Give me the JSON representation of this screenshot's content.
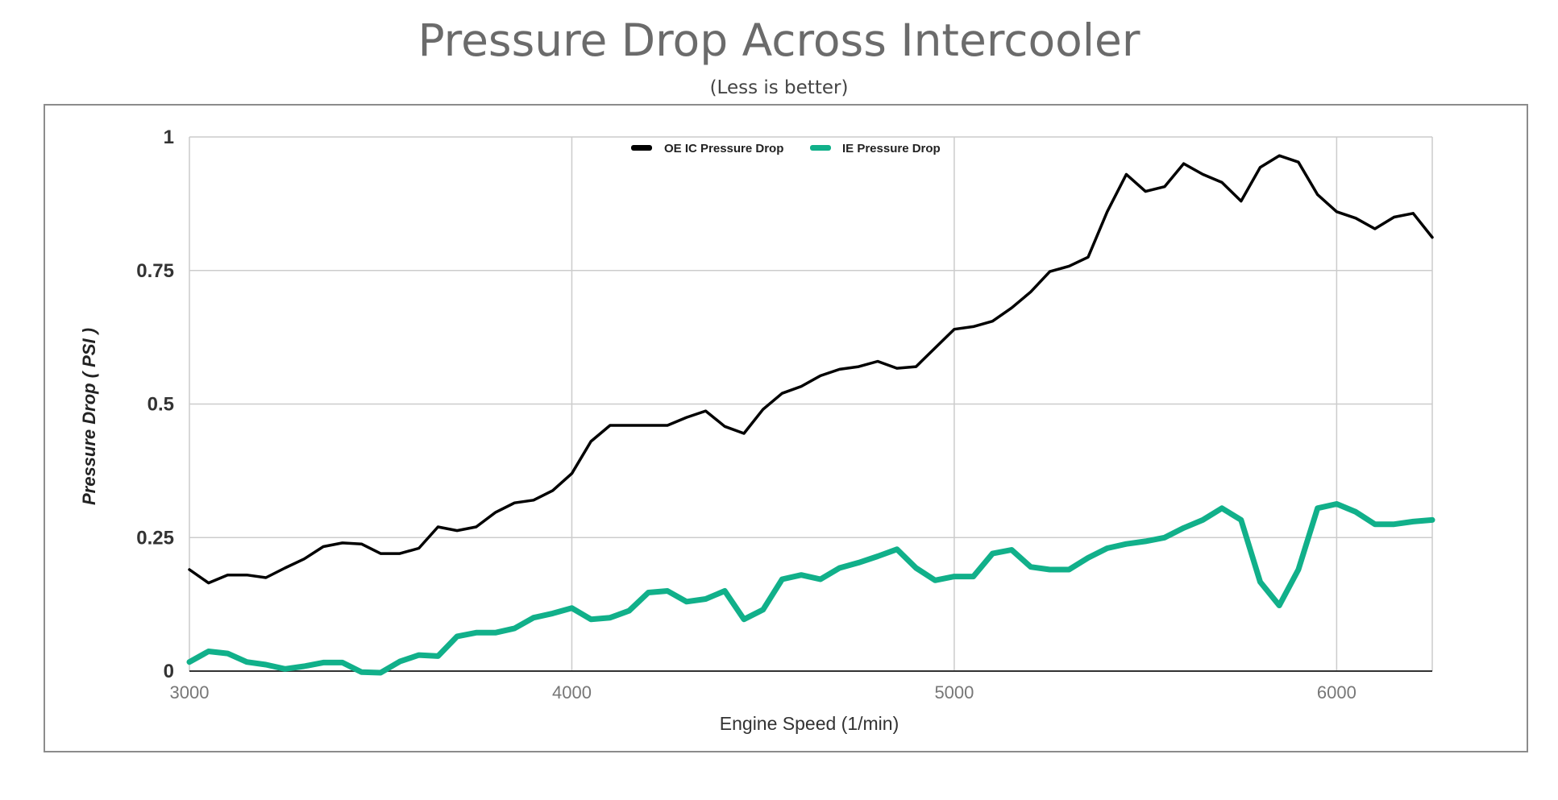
{
  "chart_data": {
    "type": "line",
    "title": "Pressure Drop Across Intercooler",
    "subtitle": "(Less is better)",
    "xlabel": "Engine Speed (1/min)",
    "ylabel": "Pressure Drop ( PSI )",
    "xlim": [
      3000,
      6250
    ],
    "ylim": [
      0,
      1
    ],
    "xticks": [
      3000,
      4000,
      5000,
      6000
    ],
    "yticks": [
      0,
      0.25,
      0.5,
      0.75,
      1
    ],
    "ytick_labels": [
      "0",
      "0.25",
      "0.5",
      "0.75",
      "1"
    ],
    "grid": true,
    "legend_position": "top-center",
    "x": [
      3000,
      3050,
      3100,
      3150,
      3200,
      3250,
      3300,
      3350,
      3400,
      3450,
      3500,
      3550,
      3600,
      3650,
      3700,
      3750,
      3800,
      3850,
      3900,
      3950,
      4000,
      4050,
      4100,
      4150,
      4200,
      4250,
      4300,
      4350,
      4400,
      4450,
      4500,
      4550,
      4600,
      4650,
      4700,
      4750,
      4800,
      4850,
      4900,
      4950,
      5000,
      5050,
      5100,
      5150,
      5200,
      5250,
      5300,
      5350,
      5400,
      5450,
      5500,
      5550,
      5600,
      5650,
      5700,
      5750,
      5800,
      5850,
      5900,
      5950,
      6000,
      6050,
      6100,
      6150,
      6200,
      6250
    ],
    "series": [
      {
        "name": "OE IC Pressure Drop",
        "color": "#000000",
        "values": [
          0.19,
          0.165,
          0.18,
          0.18,
          0.175,
          0.193,
          0.21,
          0.233,
          0.24,
          0.238,
          0.22,
          0.22,
          0.23,
          0.27,
          0.263,
          0.27,
          0.297,
          0.315,
          0.32,
          0.338,
          0.37,
          0.43,
          0.46,
          0.46,
          0.46,
          0.46,
          0.475,
          0.487,
          0.458,
          0.445,
          0.49,
          0.52,
          0.533,
          0.553,
          0.565,
          0.57,
          0.58,
          0.567,
          0.57,
          0.605,
          0.64,
          0.645,
          0.655,
          0.68,
          0.71,
          0.748,
          0.758,
          0.775,
          0.86,
          0.93,
          0.898,
          0.907,
          0.95,
          0.93,
          0.915,
          0.88,
          0.943,
          0.965,
          0.953,
          0.892,
          0.86,
          0.848,
          0.828,
          0.85,
          0.857,
          0.812
        ]
      },
      {
        "name": "IE Pressure Drop",
        "color": "#11b08a",
        "values": [
          0.017,
          0.037,
          0.033,
          0.017,
          0.012,
          0.004,
          0.009,
          0.016,
          0.016,
          -0.002,
          -0.003,
          0.018,
          0.03,
          0.028,
          0.065,
          0.072,
          0.072,
          0.08,
          0.1,
          0.108,
          0.118,
          0.097,
          0.1,
          0.113,
          0.147,
          0.15,
          0.13,
          0.135,
          0.15,
          0.097,
          0.115,
          0.172,
          0.18,
          0.172,
          0.193,
          0.203,
          0.215,
          0.228,
          0.193,
          0.17,
          0.177,
          0.177,
          0.22,
          0.227,
          0.195,
          0.19,
          0.19,
          0.212,
          0.23,
          0.238,
          0.243,
          0.25,
          0.268,
          0.283,
          0.305,
          0.283,
          0.167,
          0.123,
          0.19,
          0.305,
          0.313,
          0.298,
          0.275,
          0.275,
          0.28,
          0.283
        ]
      }
    ]
  }
}
